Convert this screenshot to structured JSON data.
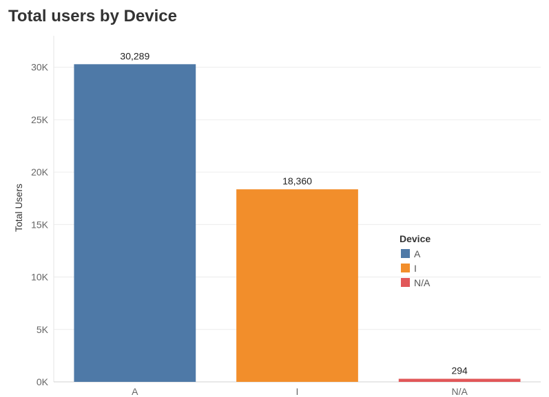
{
  "chart_data": {
    "type": "bar",
    "title": "Total users by Device",
    "ylabel": "Total Users",
    "xlabel": "",
    "categories": [
      "A",
      "I",
      "N/A"
    ],
    "values": [
      30289,
      18360,
      294
    ],
    "data_labels": [
      "30,289",
      "18,360",
      "294"
    ],
    "colors": [
      "#4e79a7",
      "#f28e2b",
      "#e15759"
    ],
    "ylim": [
      0,
      33000
    ],
    "yticks": [
      0,
      5000,
      10000,
      15000,
      20000,
      25000,
      30000
    ],
    "ytick_labels": [
      "0K",
      "5K",
      "10K",
      "15K",
      "20K",
      "25K",
      "30K"
    ],
    "grid": true,
    "legend": {
      "title": "Device",
      "placement": "right",
      "entries": [
        "A",
        "I",
        "N/A"
      ]
    }
  }
}
